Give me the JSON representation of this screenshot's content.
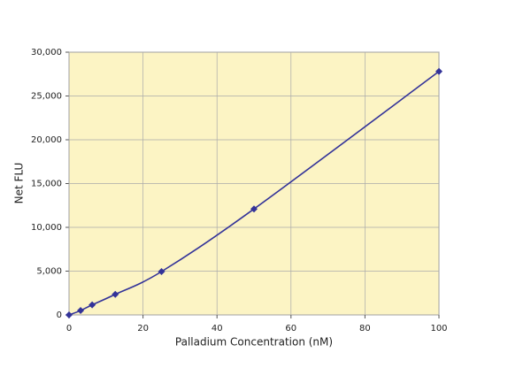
{
  "chart_data": {
    "type": "line",
    "x_label": "Palladium Concentration (nM)",
    "y_label": "Net FLU",
    "x": [
      0,
      3.125,
      6.25,
      12.5,
      25,
      50,
      100
    ],
    "values": [
      0,
      500,
      1150,
      2350,
      4950,
      12100,
      27800
    ],
    "color": "#333399",
    "marker": "diamond",
    "smooth": true,
    "background": "#fcf4c4",
    "grid": true,
    "xlim": [
      0,
      100
    ],
    "xticks": [
      0,
      20,
      40,
      60,
      80,
      100
    ],
    "ylim": [
      0,
      30000
    ],
    "yticks": [
      0,
      {
        "value": 5000,
        "label": "5,000"
      },
      {
        "value": 10000,
        "label": "10,000"
      },
      {
        "value": 15000,
        "label": "15,000"
      },
      {
        "value": 20000,
        "label": "20,000"
      },
      {
        "value": 25000,
        "label": "25,000"
      },
      {
        "value": 30000,
        "label": "30,000"
      }
    ]
  }
}
